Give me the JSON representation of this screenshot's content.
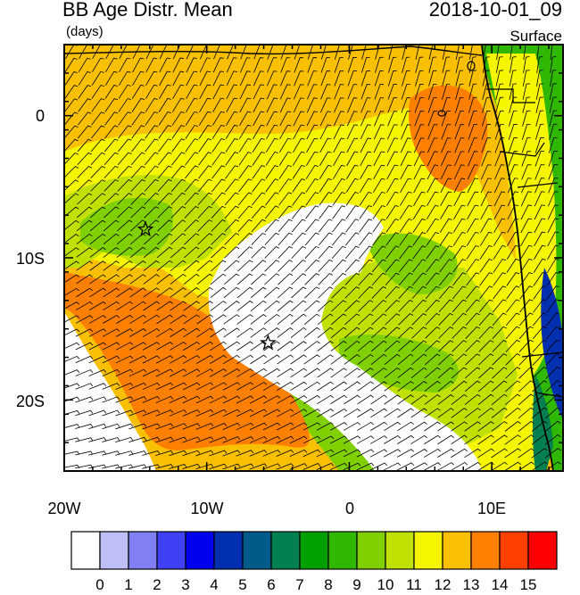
{
  "header": {
    "title": "BB Age Distr. Mean",
    "units": "(days)",
    "datetime": "2018-10-01_09",
    "level": "Surface"
  },
  "axes": {
    "y_ticks": [
      {
        "label": "0",
        "lat": 0
      },
      {
        "label": "10S",
        "lat": -10
      },
      {
        "label": "20S",
        "lat": -20
      }
    ],
    "x_ticks": [
      {
        "label": "20W",
        "lon": -20
      },
      {
        "label": "10W",
        "lon": -10
      },
      {
        "label": "0",
        "lon": 0
      },
      {
        "label": "10E",
        "lon": 10
      }
    ],
    "lon_range": [
      -20,
      15
    ],
    "lat_range": [
      -25,
      5
    ]
  },
  "markers": [
    {
      "name": "star",
      "lon": -14.3,
      "lat": -8.0
    },
    {
      "name": "star",
      "lon": -5.7,
      "lat": -16.0
    }
  ],
  "colorbar": {
    "labels": [
      "0",
      "1",
      "2",
      "3",
      "4",
      "5",
      "6",
      "7",
      "8",
      "9",
      "10",
      "11",
      "12",
      "13",
      "14",
      "15"
    ],
    "colors": [
      "#ffffff",
      "#bfbff8",
      "#8080f4",
      "#4040f8",
      "#0000f0",
      "#0030b0",
      "#005a8a",
      "#008050",
      "#00a000",
      "#30b800",
      "#80d000",
      "#c0e000",
      "#f5f500",
      "#f8c000",
      "#ff8000",
      "#ff4000",
      "#ff0000"
    ]
  },
  "colors": {
    "ocean_white": "#ffffff",
    "age_12": "#f5f500",
    "age_13": "#f8c000",
    "age_14": "#ff8000",
    "age_10": "#80d000",
    "age_11": "#c0e000",
    "land_green": "#30b800",
    "land_blue": "#0030b0"
  }
}
